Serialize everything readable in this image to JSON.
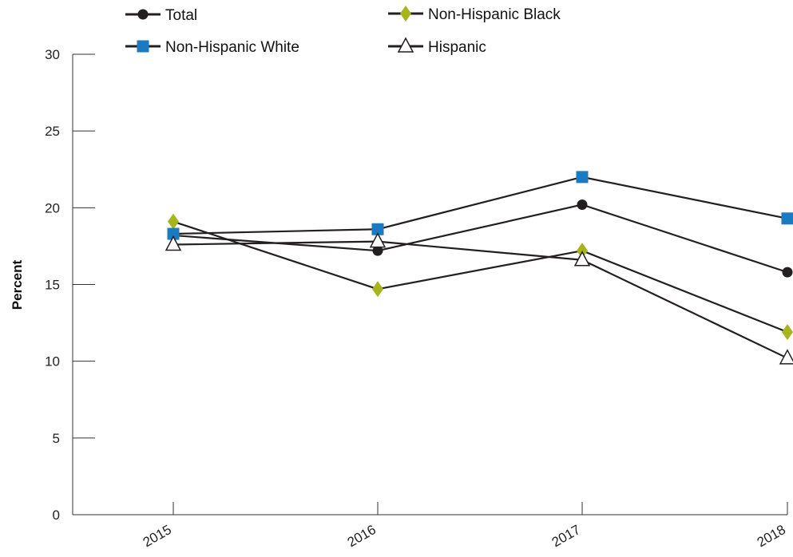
{
  "chart_data": {
    "type": "line",
    "title": "",
    "xlabel": "",
    "ylabel": "Percent",
    "categories": [
      "2015",
      "2016",
      "2017",
      "2018"
    ],
    "ylim": [
      0,
      30
    ],
    "yticks": [
      0,
      5,
      10,
      15,
      20,
      25,
      30
    ],
    "grid": false,
    "legend_position": "top",
    "series": [
      {
        "name": "Total",
        "values": [
          18.2,
          17.2,
          20.2,
          15.8
        ],
        "color": "#231f20",
        "marker": "circle"
      },
      {
        "name": "Non-Hispanic Black",
        "values": [
          19.1,
          14.7,
          17.2,
          11.9
        ],
        "color": "#a8b41c",
        "marker": "diamond"
      },
      {
        "name": "Non-Hispanic White",
        "values": [
          18.3,
          18.6,
          22.0,
          19.3
        ],
        "color": "#1a7ac2",
        "marker": "square"
      },
      {
        "name": "Hispanic",
        "values": [
          17.6,
          17.8,
          16.6,
          10.2
        ],
        "color": "#231f20",
        "marker": "triangle"
      }
    ]
  }
}
